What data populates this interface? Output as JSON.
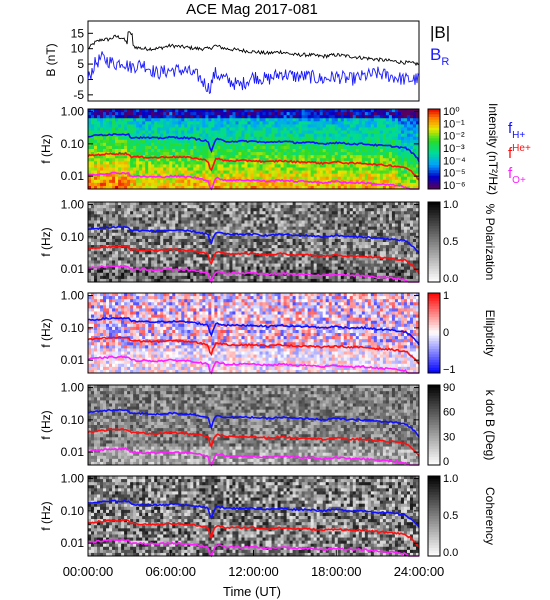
{
  "title": "ACE Mag 2017-081",
  "xlabel": "Time (UT)",
  "x_ticks": [
    "00:00:00",
    "06:00:00",
    "12:00:00",
    "18:00:00",
    "24:00:00"
  ],
  "colors": {
    "total_field": "#000000",
    "br": "#1a1aff",
    "f_h": "#1010ff",
    "f_he": "#ff1010",
    "f_o": "#ff20ff"
  },
  "chart_data": [
    {
      "type": "line",
      "ylabel": "B (nT)",
      "ylim": [
        -7,
        19
      ],
      "y_ticks": [
        "15",
        "10",
        "5",
        "0",
        "-5"
      ],
      "x_range_hours": [
        0,
        24
      ],
      "series": [
        {
          "name": "|B|",
          "x": [
            0,
            0.5,
            1,
            1.5,
            2,
            2.5,
            3,
            4,
            5,
            6,
            7,
            8,
            8.8,
            9.2,
            10,
            11,
            12,
            13,
            14,
            15,
            16,
            17,
            18,
            19,
            20,
            21,
            22,
            23,
            24
          ],
          "values": [
            10,
            12,
            13,
            13,
            14,
            13.5,
            11,
            10,
            10,
            11,
            10.5,
            10,
            10,
            11,
            10,
            9.5,
            9,
            8.5,
            9,
            8,
            8,
            7.5,
            8,
            7.5,
            7,
            6.5,
            6,
            5.5,
            5
          ]
        },
        {
          "name": "B_R",
          "x": [
            0,
            0.5,
            1,
            1.5,
            2,
            2.5,
            3,
            4,
            5,
            6,
            7,
            8,
            8.8,
            9.2,
            10,
            11,
            12,
            13,
            14,
            15,
            16,
            17,
            18,
            19,
            20,
            21,
            22,
            23,
            24
          ],
          "values": [
            0,
            5,
            7,
            6,
            5,
            6,
            4,
            5,
            2,
            3,
            3,
            1,
            -3,
            2,
            0,
            -2,
            1,
            0,
            2,
            1,
            1,
            0,
            1,
            0,
            1,
            2,
            1,
            0,
            0
          ]
        }
      ]
    },
    {
      "type": "heatmap",
      "name": "intensity",
      "ylabel": "f (Hz)",
      "y_ticks": [
        "1.00",
        "0.10",
        "0.01"
      ],
      "colorbar_label": "Intensity (nT²/Hz)",
      "colorbar_ticks": [
        "10⁰",
        "10⁻¹",
        "10⁻²",
        "10⁻³",
        "10⁻⁴",
        "10⁻⁵",
        "10⁻⁶"
      ]
    },
    {
      "type": "heatmap",
      "name": "polarization",
      "ylabel": "f (Hz)",
      "y_ticks": [
        "1.00",
        "0.10",
        "0.01"
      ],
      "colorbar_label": "% Polarization",
      "colorbar_ticks": [
        "1.0",
        "0.5",
        "0.0"
      ]
    },
    {
      "type": "heatmap",
      "name": "ellipticity",
      "ylabel": "f (Hz)",
      "y_ticks": [
        "1.00",
        "0.10",
        "0.01"
      ],
      "colorbar_label": "Ellipticity",
      "colorbar_ticks": [
        "1",
        "0",
        "−1"
      ]
    },
    {
      "type": "heatmap",
      "name": "kdotb",
      "ylabel": "f (Hz)",
      "y_ticks": [
        "1.00",
        "0.10",
        "0.01"
      ],
      "colorbar_label": "k dot B (Deg)",
      "colorbar_ticks": [
        "90",
        "60",
        "30",
        "0"
      ]
    },
    {
      "type": "heatmap",
      "name": "coherency",
      "ylabel": "f (Hz)",
      "y_ticks": [
        "1.00",
        "0.10",
        "0.01"
      ],
      "colorbar_label": "Coherency",
      "colorbar_ticks": [
        "1.0",
        "0.5",
        "0.0"
      ]
    }
  ],
  "gyro_lines": {
    "hours": [
      0,
      1,
      2,
      2.9,
      3.1,
      5,
      6,
      7.5,
      8.7,
      8.9,
      9.3,
      10,
      11,
      12,
      13,
      14,
      15,
      16,
      17,
      18,
      19,
      20,
      21,
      22,
      23,
      24
    ],
    "f_h_hz": [
      0.17,
      0.19,
      0.2,
      0.2,
      0.16,
      0.15,
      0.16,
      0.15,
      0.12,
      0.05,
      0.14,
      0.12,
      0.12,
      0.12,
      0.11,
      0.12,
      0.11,
      0.11,
      0.1,
      0.11,
      0.1,
      0.1,
      0.09,
      0.085,
      0.075,
      0.03
    ]
  },
  "legend": {
    "b_total": "|B|",
    "b_r": "B",
    "b_r_sub": "R",
    "f_h": "f",
    "f_h_sub": "H+",
    "f_he": "f",
    "f_he_sup": "He+",
    "f_o": "f",
    "f_o_sub": "O+"
  }
}
